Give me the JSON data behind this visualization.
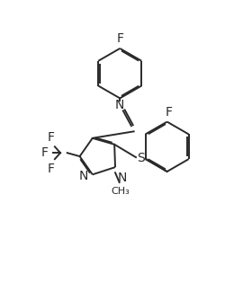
{
  "background_color": "#ffffff",
  "line_color": "#2a2a2a",
  "line_width": 1.4,
  "dbo": 0.018,
  "figsize": [
    2.6,
    3.34
  ],
  "dpi": 100,
  "xlim": [
    0.0,
    2.6
  ],
  "ylim": [
    0.0,
    3.34
  ]
}
